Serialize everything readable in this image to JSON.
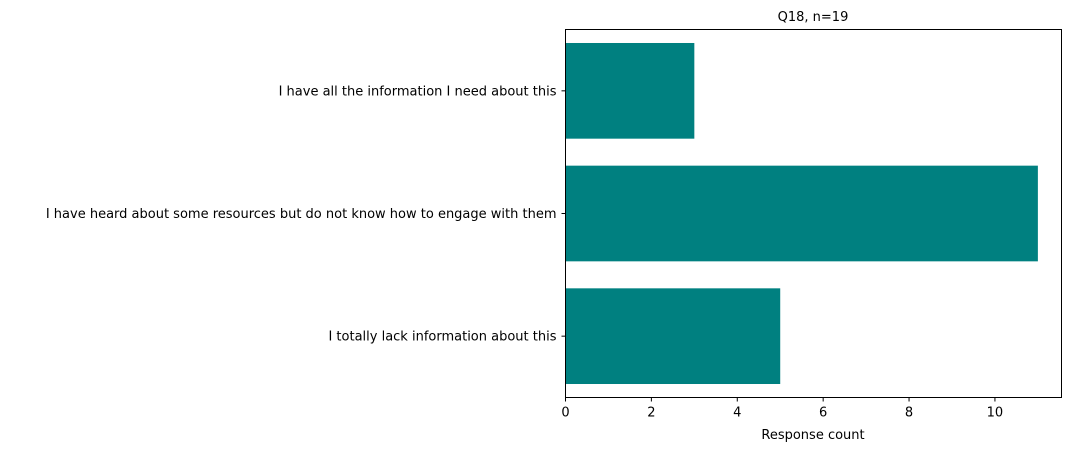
{
  "chart_data": {
    "type": "bar",
    "orientation": "horizontal",
    "title": "Q18, n=19",
    "xlabel": "Response count",
    "ylabel": "",
    "categories": [
      "I have all the information I need about this",
      "I have heard about some resources but do not know how to engage with them",
      "I totally lack information about this"
    ],
    "values": [
      3,
      11,
      5
    ],
    "x_ticks": [
      0,
      2,
      4,
      6,
      8,
      10
    ],
    "xlim": [
      0,
      11.55
    ],
    "grid": false,
    "legend": "none",
    "bar_color": "#008080"
  }
}
